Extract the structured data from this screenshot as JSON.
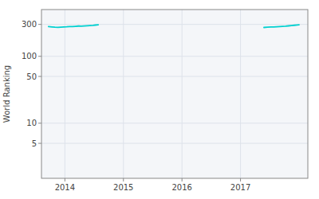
{
  "chart_data": {
    "type": "line",
    "y_label": "World Ranking",
    "series": [
      {
        "color": "#00d0d0",
        "x": [
          2013.72,
          2013.78,
          2013.83,
          2013.88,
          2013.93,
          2013.98,
          2014.03,
          2014.08,
          2014.13,
          2014.18,
          2014.23,
          2014.28,
          2014.33,
          2014.38,
          2014.43,
          2014.48,
          2014.52,
          2014.57
        ],
        "values": [
          278,
          275,
          272,
          271,
          273,
          275,
          276,
          278,
          279,
          281,
          283,
          282,
          284,
          286,
          288,
          290,
          293,
          296
        ]
      },
      {
        "color": "#00d0d0",
        "x": [
          2017.4,
          2017.46,
          2017.52,
          2017.57,
          2017.62,
          2017.67,
          2017.72,
          2017.77,
          2017.82,
          2017.87,
          2017.92,
          2017.97,
          2018.0
        ],
        "values": [
          270,
          272,
          274,
          274,
          276,
          278,
          280,
          282,
          285,
          288,
          291,
          294,
          296
        ]
      }
    ],
    "xlim": [
      2013.6,
      2018.15
    ],
    "xticks": [
      2014,
      2015,
      2016,
      2017
    ],
    "ylim": [
      1.5,
      500
    ],
    "yticks": [
      5,
      10,
      50,
      100,
      300
    ],
    "log": "y",
    "grid": true
  }
}
